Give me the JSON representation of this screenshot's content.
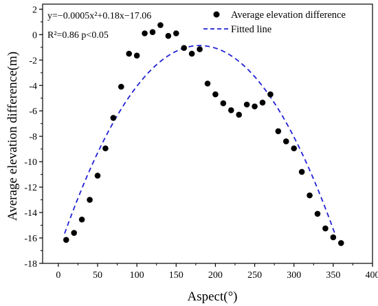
{
  "chart_data": {
    "type": "scatter",
    "xlabel": "Aspect(°)",
    "ylabel": "Average elevation difference(m)",
    "xlim": [
      -20,
      400
    ],
    "ylim": [
      -18,
      2.4
    ],
    "xticks": [
      0,
      50,
      100,
      150,
      200,
      250,
      300,
      350,
      400
    ],
    "yticks": [
      2,
      0,
      -2,
      -4,
      -6,
      -8,
      -10,
      -12,
      -14,
      -16,
      -18
    ],
    "grid": false,
    "legend_position": "top-right",
    "annotations": {
      "equation": "y=−0.0005x²+0.18x−17.06",
      "r2_label": "R²=0.86 p<0.05"
    },
    "series": [
      {
        "name": "Average  elevation difference",
        "kind": "scatter",
        "color": "#000000",
        "x": [
          10,
          20,
          30,
          40,
          50,
          60,
          70,
          80,
          90,
          100,
          110,
          120,
          130,
          140,
          150,
          160,
          170,
          180,
          190,
          200,
          210,
          220,
          230,
          240,
          250,
          260,
          270,
          280,
          290,
          300,
          310,
          320,
          330,
          340,
          350,
          360
        ],
        "y": [
          -16.15,
          -15.6,
          -14.55,
          -13.0,
          -11.1,
          -8.95,
          -6.55,
          -4.1,
          -1.5,
          -1.65,
          0.1,
          0.2,
          0.75,
          -0.1,
          0.1,
          -1.05,
          -1.5,
          -1.15,
          -3.85,
          -4.7,
          -5.4,
          -5.95,
          -6.3,
          -5.5,
          -5.65,
          -5.35,
          -4.7,
          -7.6,
          -8.4,
          -8.95,
          -10.8,
          -12.65,
          -14.1,
          -15.25,
          -15.95,
          -16.4
        ]
      },
      {
        "name": "Fitted line",
        "kind": "line",
        "dash": "dashed",
        "color": "#1f1fd6",
        "equation": {
          "a": -0.0005,
          "b": 0.18,
          "c": -17.06
        },
        "x_range": [
          8,
          353
        ]
      }
    ]
  }
}
